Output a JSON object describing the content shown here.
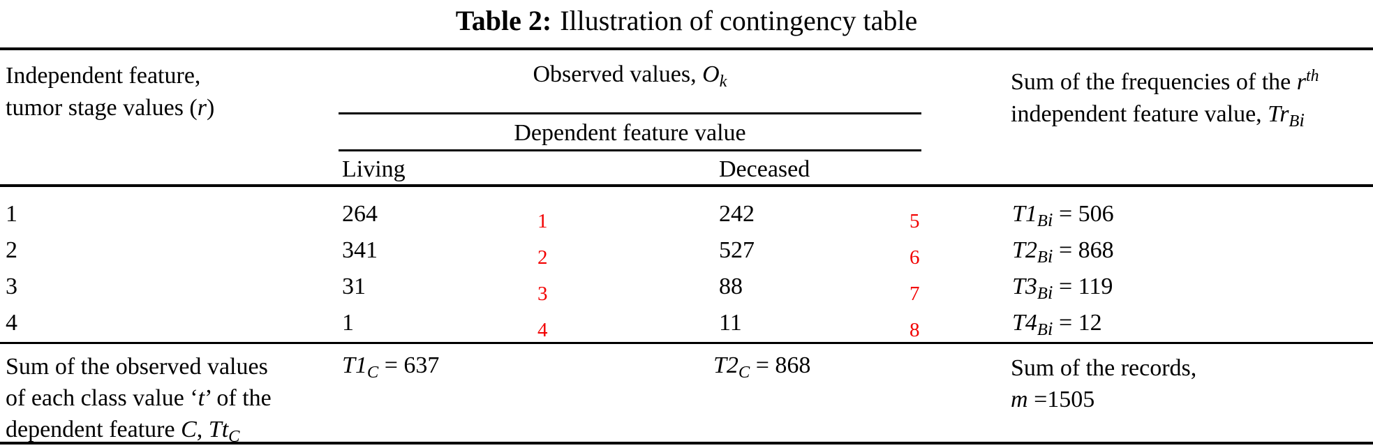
{
  "colors": {
    "background": "#ffffff",
    "text": "#000000",
    "accent_red": "#f20000"
  },
  "caption": {
    "label": "Table 2:",
    "text": "Illustration of contingency table"
  },
  "header": {
    "independent_line1": "Independent feature,",
    "independent_line2_pre": "tumor stage values (",
    "independent_line2_sym": "r",
    "independent_line2_post": ")",
    "observed_pre": "Observed values, ",
    "observed_sym": "O",
    "observed_sub": "k",
    "dependent_label": "Dependent feature value",
    "living_label": "Living",
    "deceased_label": "Deceased",
    "sumfreq_line1_pre": "Sum of the frequencies of the ",
    "sumfreq_line1_sym": "r",
    "sumfreq_line1_sup": "th",
    "sumfreq_line2_pre": "independent feature value, ",
    "sumfreq_line2_sym": "Tr",
    "sumfreq_line2_sub": "B",
    "sumfreq_line2_subsub": "i"
  },
  "rows": [
    {
      "stage": "1",
      "living": "264",
      "living_ref": "1",
      "deceased": "242",
      "deceased_ref": "5",
      "sum_sym": "T1",
      "sum_sub": "B",
      "sum_subsub": "i",
      "sum_eq": "= 506"
    },
    {
      "stage": "2",
      "living": "341",
      "living_ref": "2",
      "deceased": "527",
      "deceased_ref": "6",
      "sum_sym": "T2",
      "sum_sub": "B",
      "sum_subsub": "i",
      "sum_eq": "= 868"
    },
    {
      "stage": "3",
      "living": "31",
      "living_ref": "3",
      "deceased": "88",
      "deceased_ref": "7",
      "sum_sym": "T3",
      "sum_sub": "B",
      "sum_subsub": "i",
      "sum_eq": "= 119"
    },
    {
      "stage": "4",
      "living": "1",
      "living_ref": "4",
      "deceased": "11",
      "deceased_ref": "8",
      "sum_sym": "T4",
      "sum_sub": "B",
      "sum_subsub": "i",
      "sum_eq": "= 12"
    }
  ],
  "footer": {
    "left_line1": "Sum of the observed values",
    "left_line2_pre": "of each class value ‘",
    "left_line2_sym": "t",
    "left_line2_post": "’ of the",
    "left_line3_pre": "dependent feature ",
    "left_line3_sym1": "C",
    "left_line3_mid": ", ",
    "left_line3_sym2": "Tt",
    "left_line3_sub": "C",
    "t1c_sym": "T1",
    "t1c_sub": "C",
    "t1c_eq": "= 637",
    "t2c_sym": "T2",
    "t2c_sub": "C",
    "t2c_eq": "= 868",
    "right_line1": "Sum of the records,",
    "right_line2_sym": "m",
    "right_line2_eq": "=1505"
  }
}
